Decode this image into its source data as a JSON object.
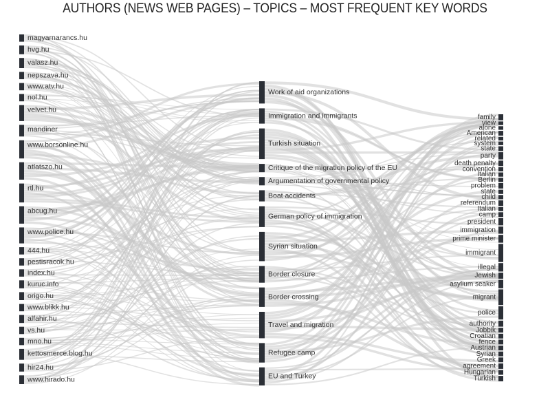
{
  "title": "AUTHORS (NEWS WEB PAGES) – TOPICS – MOST FREQUENT KEY WORDS",
  "chart_data": {
    "type": "sankey",
    "columns": [
      "authors",
      "topics",
      "keywords"
    ],
    "authors": [
      {
        "name": "magyarnarancs.hu",
        "w": 1
      },
      {
        "name": "hvg.hu",
        "w": 1.2
      },
      {
        "name": "valasz.hu",
        "w": 1.4
      },
      {
        "name": "nepszava.hu",
        "w": 1
      },
      {
        "name": "www.atv.hu",
        "w": 1
      },
      {
        "name": "nol.hu",
        "w": 1
      },
      {
        "name": "velvet.hu",
        "w": 2.2
      },
      {
        "name": "mandiner",
        "w": 1.6
      },
      {
        "name": "www.borsonline.hu",
        "w": 2.5
      },
      {
        "name": "atlatszo.hu",
        "w": 2.4
      },
      {
        "name": "rtl.hu",
        "w": 2.6
      },
      {
        "name": "abcug.hu",
        "w": 2.4
      },
      {
        "name": "www.police.hu",
        "w": 2.2
      },
      {
        "name": "444.hu",
        "w": 1
      },
      {
        "name": "pestisracok.hu",
        "w": 1
      },
      {
        "name": "index.hu",
        "w": 1
      },
      {
        "name": "kuruc.info",
        "w": 1.1
      },
      {
        "name": "origo.hu",
        "w": 1.1
      },
      {
        "name": "www.blikk.hu",
        "w": 1
      },
      {
        "name": "alfahir.hu",
        "w": 1.1
      },
      {
        "name": "vs.hu",
        "w": 1
      },
      {
        "name": "mno.hu",
        "w": 1
      },
      {
        "name": "kettosmerce.blog.hu",
        "w": 1.5
      },
      {
        "name": "hir24.hu",
        "w": 1.1
      },
      {
        "name": "www.hirado.hu",
        "w": 1.2
      }
    ],
    "topics": [
      {
        "name": "Work of aid organizations",
        "w": 3.2
      },
      {
        "name": "Immigration and immigrants",
        "w": 2.2
      },
      {
        "name": "Turkish situation",
        "w": 4.4
      },
      {
        "name": "Critique of the migration policy of the EU",
        "w": 1.2
      },
      {
        "name": "Argumentation of governmental policy",
        "w": 1.2
      },
      {
        "name": "Boat accidents",
        "w": 1.6
      },
      {
        "name": "German policy of immigration",
        "w": 3
      },
      {
        "name": "Syrian situation",
        "w": 4.2
      },
      {
        "name": "Border closure",
        "w": 2.4
      },
      {
        "name": "Border crossing",
        "w": 2.8
      },
      {
        "name": "Travel and migration",
        "w": 3.8
      },
      {
        "name": "Refugee camp",
        "w": 2.8
      },
      {
        "name": "EU and Turkey",
        "w": 2.6
      }
    ],
    "keywords": [
      {
        "name": "family",
        "w": 1
      },
      {
        "name": "view",
        "w": 0.6
      },
      {
        "name": "alone",
        "w": 0.6
      },
      {
        "name": "American",
        "w": 0.8
      },
      {
        "name": "related",
        "w": 0.6
      },
      {
        "name": "system",
        "w": 0.6
      },
      {
        "name": "state",
        "w": 0.8
      },
      {
        "name": "party",
        "w": 1.2
      },
      {
        "name": "death penalty",
        "w": 0.9
      },
      {
        "name": "convention",
        "w": 0.7
      },
      {
        "name": "Italian",
        "w": 0.7
      },
      {
        "name": "Berlin",
        "w": 0.7
      },
      {
        "name": "problem",
        "w": 0.9
      },
      {
        "name": "state",
        "w": 0.7
      },
      {
        "name": "child",
        "w": 0.7
      },
      {
        "name": "referendum",
        "w": 0.9
      },
      {
        "name": "Italian",
        "w": 0.7
      },
      {
        "name": "camp",
        "w": 0.8
      },
      {
        "name": "president",
        "w": 1.2
      },
      {
        "name": "immigration",
        "w": 1.2
      },
      {
        "name": "prime minister",
        "w": 1.3
      },
      {
        "name": "immigrant",
        "w": 3
      },
      {
        "name": "illegal",
        "w": 1.4
      },
      {
        "name": "Jewish",
        "w": 1
      },
      {
        "name": "asylium seaker",
        "w": 1.4
      },
      {
        "name": "migrant",
        "w": 2.6
      },
      {
        "name": "police",
        "w": 2.2
      },
      {
        "name": "authority",
        "w": 1
      },
      {
        "name": "Jobbik",
        "w": 0.8
      },
      {
        "name": "Croatian",
        "w": 0.8
      },
      {
        "name": "fence",
        "w": 0.8
      },
      {
        "name": "Austrian",
        "w": 0.8
      },
      {
        "name": "Syrian",
        "w": 0.8
      },
      {
        "name": "Greek",
        "w": 0.8
      },
      {
        "name": "agreement",
        "w": 0.9
      },
      {
        "name": "Hungarian",
        "w": 0.8
      },
      {
        "name": "Turkish",
        "w": 0.9
      }
    ]
  }
}
